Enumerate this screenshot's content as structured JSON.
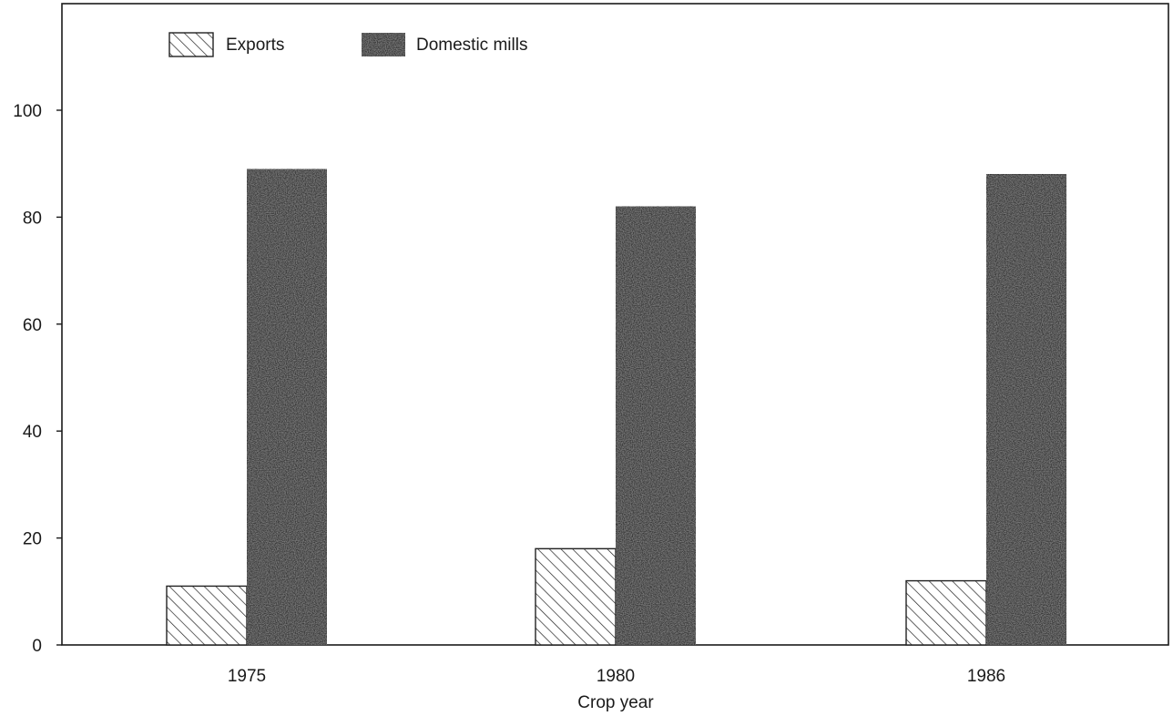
{
  "chart_data": {
    "type": "bar",
    "categories": [
      "1975",
      "1980",
      "1986"
    ],
    "series": [
      {
        "name": "Exports",
        "values": [
          11,
          18,
          12
        ],
        "fill": "hatch"
      },
      {
        "name": "Domestic mills",
        "values": [
          89,
          82,
          88
        ],
        "fill": "dark-speckle"
      }
    ],
    "xlabel": "Crop year",
    "ylabel": "",
    "ylim": [
      0,
      100
    ],
    "yticks": [
      0,
      20,
      40,
      60,
      80,
      100
    ],
    "grid": false,
    "legend_position": "top-left",
    "colors": {
      "axis": "#1a1a1a",
      "domestic": "#3a3a3a",
      "hatch": "#222222"
    }
  }
}
